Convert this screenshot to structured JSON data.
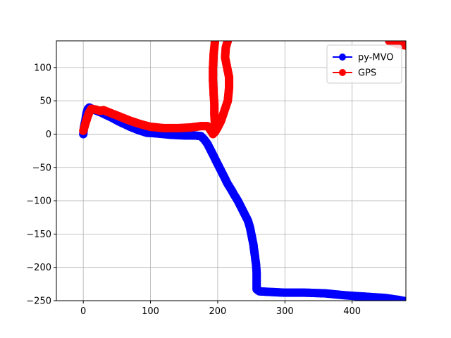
{
  "chart_data": {
    "type": "line",
    "title": "",
    "xlabel": "",
    "ylabel": "",
    "xlim": [
      -40,
      480
    ],
    "ylim": [
      -250,
      140
    ],
    "xticks": [
      0,
      100,
      200,
      300,
      400
    ],
    "yticks": [
      -250,
      -200,
      -150,
      -100,
      -50,
      0,
      50,
      100
    ],
    "grid": true,
    "legend_position": "top-right",
    "series": [
      {
        "name": "py-MVO",
        "color": "#0000ff",
        "marker": "circle",
        "points": [
          [
            0,
            0
          ],
          [
            1,
            10
          ],
          [
            3,
            20
          ],
          [
            5,
            32
          ],
          [
            7,
            38
          ],
          [
            9,
            40
          ],
          [
            15,
            37
          ],
          [
            25,
            33
          ],
          [
            40,
            26
          ],
          [
            55,
            18
          ],
          [
            70,
            11
          ],
          [
            85,
            5
          ],
          [
            95,
            2
          ],
          [
            110,
            1
          ],
          [
            130,
            -1
          ],
          [
            150,
            -2
          ],
          [
            165,
            -2
          ],
          [
            175,
            -3
          ],
          [
            180,
            -8
          ],
          [
            185,
            -15
          ],
          [
            190,
            -25
          ],
          [
            195,
            -35
          ],
          [
            200,
            -45
          ],
          [
            205,
            -55
          ],
          [
            210,
            -65
          ],
          [
            215,
            -75
          ],
          [
            220,
            -83
          ],
          [
            225,
            -92
          ],
          [
            230,
            -100
          ],
          [
            235,
            -110
          ],
          [
            240,
            -120
          ],
          [
            245,
            -130
          ],
          [
            248,
            -140
          ],
          [
            250,
            -150
          ],
          [
            253,
            -165
          ],
          [
            255,
            -180
          ],
          [
            257,
            -195
          ],
          [
            258,
            -210
          ],
          [
            258,
            -225
          ],
          [
            258,
            -233
          ],
          [
            262,
            -236
          ],
          [
            280,
            -237
          ],
          [
            300,
            -238
          ],
          [
            330,
            -238
          ],
          [
            360,
            -239
          ],
          [
            390,
            -242
          ],
          [
            420,
            -244
          ],
          [
            450,
            -246
          ],
          [
            470,
            -249
          ],
          [
            480,
            -251
          ]
        ]
      },
      {
        "name": "GPS",
        "color": "#ff0000",
        "marker": "circle",
        "points": [
          [
            0,
            5
          ],
          [
            3,
            15
          ],
          [
            6,
            25
          ],
          [
            9,
            33
          ],
          [
            12,
            38
          ],
          [
            18,
            37
          ],
          [
            25,
            35
          ],
          [
            30,
            36
          ],
          [
            40,
            32
          ],
          [
            55,
            26
          ],
          [
            70,
            20
          ],
          [
            85,
            15
          ],
          [
            100,
            11
          ],
          [
            120,
            9
          ],
          [
            140,
            9
          ],
          [
            160,
            10
          ],
          [
            175,
            12
          ],
          [
            185,
            12
          ],
          [
            190,
            5
          ],
          [
            193,
            0
          ],
          [
            195,
            5
          ],
          [
            196,
            15
          ],
          [
            195,
            30
          ],
          [
            195,
            45
          ],
          [
            194,
            60
          ],
          [
            193,
            80
          ],
          [
            193,
            100
          ],
          [
            194,
            120
          ],
          [
            196,
            140
          ]
        ],
        "branch": [
          [
            196,
            3
          ],
          [
            200,
            10
          ],
          [
            205,
            20
          ],
          [
            210,
            35
          ],
          [
            215,
            50
          ],
          [
            217,
            70
          ],
          [
            217,
            85
          ],
          [
            214,
            100
          ],
          [
            211,
            115
          ],
          [
            212,
            130
          ],
          [
            215,
            140
          ]
        ],
        "tail": [
          [
            455,
            140
          ],
          [
            465,
            136
          ],
          [
            475,
            134
          ],
          [
            480,
            133
          ]
        ]
      }
    ]
  }
}
